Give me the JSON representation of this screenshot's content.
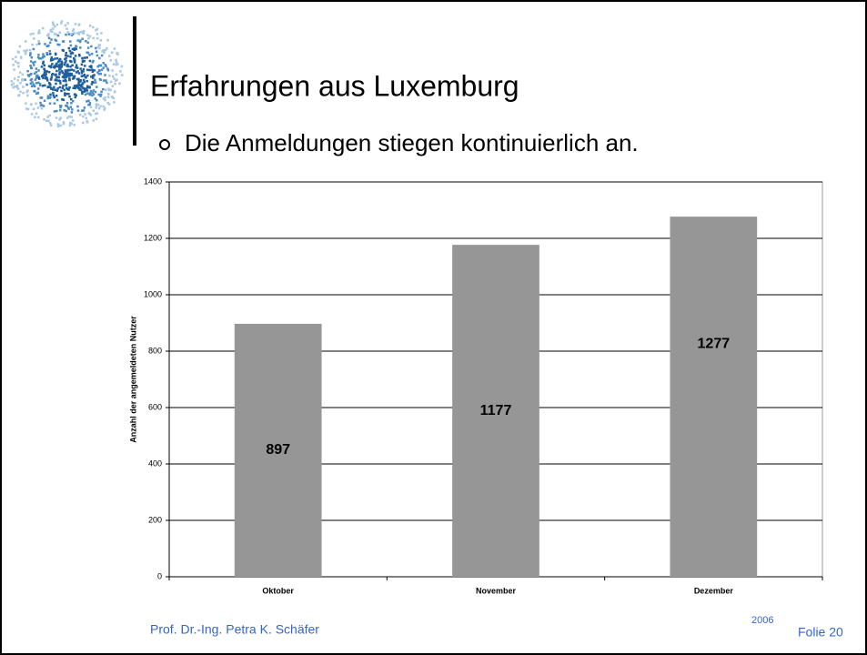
{
  "slide": {
    "title": "Erfahrungen aus Luxemburg",
    "bullet": "Die Anmeldungen stiegen kontinuierlich an.",
    "author": "Prof. Dr.-Ing. Petra K. Schäfer",
    "year": "2006",
    "slide_number": "Folie 20"
  },
  "chart_data": {
    "type": "bar",
    "y_label": "Anzahl der angemeldeten Nutzer",
    "categories": [
      "Oktober",
      "November",
      "Dezember"
    ],
    "values": [
      897,
      1177,
      1277
    ],
    "color": "#969696",
    "ylim": [
      0,
      1400
    ],
    "yticks": [
      0,
      200,
      400,
      600,
      800,
      1000,
      1200,
      1400
    ],
    "grid": true
  }
}
